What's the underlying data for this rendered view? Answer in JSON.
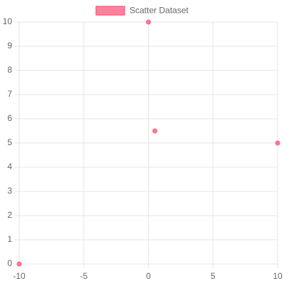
{
  "chart_data": {
    "type": "scatter",
    "series": [
      {
        "name": "Scatter Dataset",
        "color": "#ff6384",
        "x": [
          -10,
          0,
          10,
          0.5
        ],
        "values": [
          0,
          10,
          5,
          5.5
        ]
      }
    ],
    "xlim": [
      -10,
      10
    ],
    "xticks": [
      -10,
      -5,
      0,
      5,
      10
    ],
    "ylim": [
      0,
      10
    ],
    "yticks": [
      0,
      1,
      2,
      3,
      4,
      5,
      6,
      7,
      8,
      9,
      10
    ],
    "grid": true,
    "legend": "top"
  }
}
